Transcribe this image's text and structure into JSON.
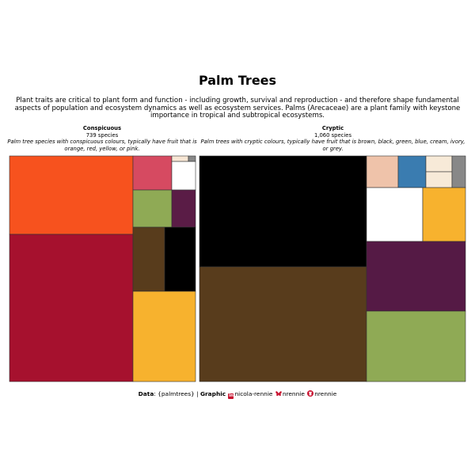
{
  "title": "Palm Trees",
  "subtitle": "Plant traits are critical to plant form and function - including growth, survival and reproduction  - and therefore shape fundamental aspects of population  and ecosystem dynamics as well as ecosystem services. Palms (Arecaceae)  are a plant family with keystone importance  in tropical and subtropical ecosystems.",
  "caption": {
    "data_label": "Data",
    "data_value": ": {palmtrees} | ",
    "graphic_label": "Graphic",
    "linkedin_handle": "nicola-rennie",
    "bluesky_handle": "nrennie",
    "github_handle": "nrennie"
  },
  "icons": [
    "linkedin-icon",
    "bluesky-icon",
    "github-icon"
  ],
  "chart_data": {
    "type": "treemap",
    "panels": [
      {
        "title": "Conspicuous",
        "count_label": "739 species",
        "description": "Palm tree species with conspicuous colours, typically have fruit that is orange, red, yellow, or pink.",
        "tiles": [
          {
            "colour": "#F7521E"
          },
          {
            "colour": "#A6112E"
          },
          {
            "colour": "#D64A61"
          },
          {
            "colour": "#F7E6D4"
          },
          {
            "colour": "#888888"
          },
          {
            "colour": "#FFFFFF"
          },
          {
            "colour": "#8FAA55"
          },
          {
            "colour": "#5A1C46"
          },
          {
            "colour": "#583C1C"
          },
          {
            "colour": "#000000"
          },
          {
            "colour": "#F7B22E"
          }
        ]
      },
      {
        "title": "Cryptic",
        "count_label": "1,060 species",
        "description": "Palm trees with cryptic colours, typically have fruit that is brown, black, green, blue, cream, ivory, or grey.",
        "tiles": [
          {
            "colour": "#000000"
          },
          {
            "colour": "#583C1C"
          },
          {
            "colour": "#EFC3AA"
          },
          {
            "colour": "#3A7CB0"
          },
          {
            "colour": "#F7EAD8"
          },
          {
            "colour": "#F7EAD8"
          },
          {
            "colour": "#888888"
          },
          {
            "colour": "#FFFFFF"
          },
          {
            "colour": "#F7B22E"
          },
          {
            "colour": "#551A45"
          },
          {
            "colour": "#8FAA55"
          }
        ]
      }
    ]
  }
}
